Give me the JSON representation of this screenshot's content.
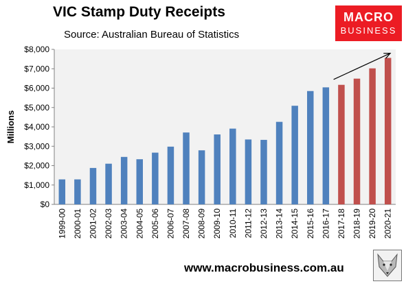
{
  "header": {
    "title": "VIC Stamp Duty Receipts",
    "subtitle": "Source: Australian Bureau of Statistics"
  },
  "logo": {
    "line1": "MACRO",
    "line2": "BUSINESS",
    "color": "#ec1c24"
  },
  "footer": {
    "url": "www.macrobusiness.com.au"
  },
  "colors": {
    "actual": "#4f81bd",
    "forecast": "#c0504d",
    "plot_bg": "#f2f2f2",
    "arrow": "#000000"
  },
  "icons": {
    "fox": "fox-icon"
  },
  "chart_data": {
    "type": "bar",
    "title": "VIC Stamp Duty Receipts",
    "subtitle": "Source: Australian Bureau of Statistics",
    "xlabel": "",
    "ylabel": "Millions",
    "ylim": [
      0,
      8000
    ],
    "yticks": [
      0,
      1000,
      2000,
      3000,
      4000,
      5000,
      6000,
      7000,
      8000
    ],
    "ytick_labels": [
      "$0",
      "$1,000",
      "$2,000",
      "$3,000",
      "$4,000",
      "$5,000",
      "$6,000",
      "$7,000",
      "$8,000"
    ],
    "grid": false,
    "categories": [
      "1999-00",
      "2000-01",
      "2001-02",
      "2002-03",
      "2003-04",
      "2004-05",
      "2005-06",
      "2006-07",
      "2007-08",
      "2008-09",
      "2009-10",
      "2010-11",
      "2011-12",
      "2012-13",
      "2013-14",
      "2014-15",
      "2015-16",
      "2016-17",
      "2017-18",
      "2018-19",
      "2019-20",
      "2020-21"
    ],
    "values": [
      1290,
      1290,
      1880,
      2100,
      2450,
      2330,
      2670,
      2980,
      3710,
      2790,
      3610,
      3910,
      3350,
      3330,
      4260,
      5090,
      5850,
      6040,
      6170,
      6490,
      7020,
      7560
    ],
    "bar_kind": [
      "actual",
      "actual",
      "actual",
      "actual",
      "actual",
      "actual",
      "actual",
      "actual",
      "actual",
      "actual",
      "actual",
      "actual",
      "actual",
      "actual",
      "actual",
      "actual",
      "actual",
      "actual",
      "forecast",
      "forecast",
      "forecast",
      "forecast"
    ],
    "annotation": {
      "type": "arrow",
      "from_category": "2017-18",
      "from_value": 6450,
      "to_category": "2020-21",
      "to_value": 7800
    }
  }
}
